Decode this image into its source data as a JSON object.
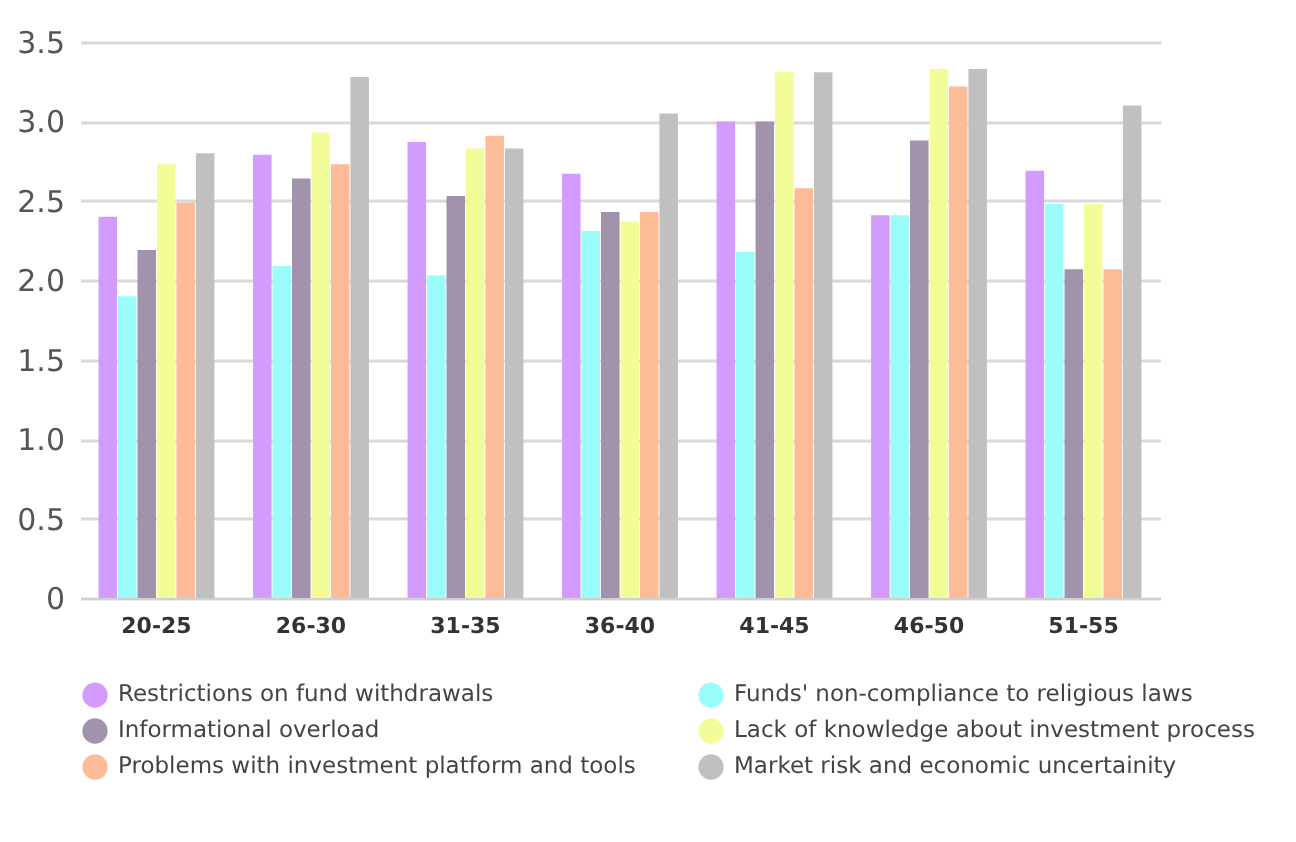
{
  "chart_data": {
    "type": "bar",
    "categories": [
      "20-25",
      "26-30",
      "31-35",
      "36-40",
      "41-45",
      "46-50",
      "51-55"
    ],
    "series": [
      {
        "name": "Restrictions on fund withdrawals",
        "color": "#d29bfd",
        "values": [
          2.4,
          2.79,
          2.87,
          2.67,
          3.0,
          2.41,
          2.69
        ]
      },
      {
        "name": "Funds' non-compliance to religious laws",
        "color": "#9bfdf9",
        "values": [
          1.9,
          2.09,
          2.03,
          2.31,
          2.18,
          2.41,
          2.48
        ]
      },
      {
        "name": "Informational overload",
        "color": "#a193ab",
        "values": [
          2.19,
          2.64,
          2.53,
          2.43,
          3.0,
          2.88,
          2.07
        ]
      },
      {
        "name": "Lack of knowledge about investment process",
        "color": "#f3fd98",
        "values": [
          2.73,
          2.93,
          2.83,
          2.37,
          3.31,
          3.33,
          2.48
        ]
      },
      {
        "name": "Problems with investment platform and tools",
        "color": "#febb98",
        "values": [
          2.49,
          2.73,
          2.91,
          2.43,
          2.58,
          3.22,
          2.07
        ]
      },
      {
        "name": "Market risk and economic uncertainity",
        "color": "#c0c0c0",
        "values": [
          2.8,
          3.28,
          2.83,
          3.05,
          3.31,
          3.33,
          3.1
        ]
      }
    ],
    "ylim": [
      0,
      3.5
    ],
    "yticks": [
      {
        "value": 0,
        "label": "0"
      },
      {
        "value": 0.5,
        "label": "0.5"
      },
      {
        "value": 1,
        "label": "1.0"
      },
      {
        "value": 1.5,
        "label": "1.5"
      },
      {
        "value": 2,
        "label": "2.0"
      },
      {
        "value": 2.5,
        "label": "2.5"
      },
      {
        "value": 3,
        "label": "3.0"
      },
      {
        "value": 3.5,
        "label": "3.5"
      }
    ],
    "grid": "y",
    "legend": "bottom"
  }
}
